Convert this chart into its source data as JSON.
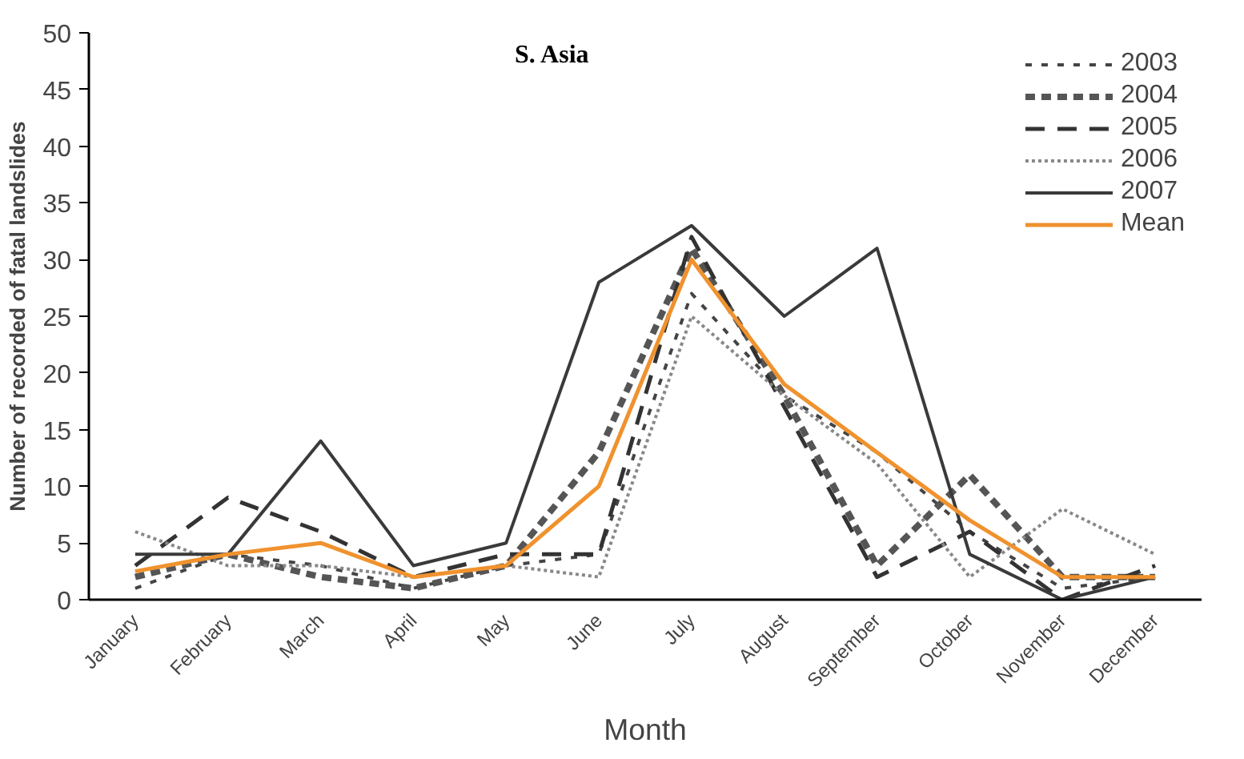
{
  "chart_data": {
    "type": "line",
    "title": "S. Asia",
    "xlabel": "Month",
    "ylabel": "Number of recorded of fatal landslides",
    "categories": [
      "January",
      "February",
      "March",
      "April",
      "May",
      "June",
      "July",
      "August",
      "September",
      "October",
      "November",
      "December"
    ],
    "ylim": [
      0,
      50
    ],
    "yticks": [
      0,
      5,
      10,
      15,
      20,
      25,
      30,
      35,
      40,
      45,
      50
    ],
    "grid": false,
    "legend": "top right",
    "marker": "none",
    "series": [
      {
        "name": "2003",
        "color": "#444444",
        "line_style": "dashed",
        "values": [
          1,
          4,
          3,
          1,
          3,
          4,
          27,
          18,
          13,
          6,
          1,
          2
        ]
      },
      {
        "name": "2004",
        "color": "#555555",
        "line_style": "dashed",
        "values": [
          2,
          4,
          2,
          1,
          3,
          13,
          31,
          18,
          3,
          11,
          2,
          2
        ]
      },
      {
        "name": "2005",
        "color": "#333333",
        "line_style": "dashed",
        "values": [
          3,
          9,
          6,
          2,
          4,
          4,
          32,
          17,
          2,
          6,
          0,
          3
        ]
      },
      {
        "name": "2006",
        "color": "#888888",
        "line_style": "dotted",
        "values": [
          6,
          3,
          3,
          2,
          3,
          2,
          25,
          18,
          12,
          2,
          8,
          4
        ]
      },
      {
        "name": "2007",
        "color": "#3a3a3a",
        "line_style": "solid",
        "values": [
          4,
          4,
          14,
          3,
          5,
          28,
          33,
          25,
          31,
          4,
          0,
          2
        ]
      },
      {
        "name": "Mean",
        "color": "#f0922e",
        "line_style": "solid",
        "values": [
          2.5,
          4,
          5,
          2,
          3,
          10,
          30,
          19,
          13,
          7,
          2,
          2
        ]
      }
    ]
  }
}
